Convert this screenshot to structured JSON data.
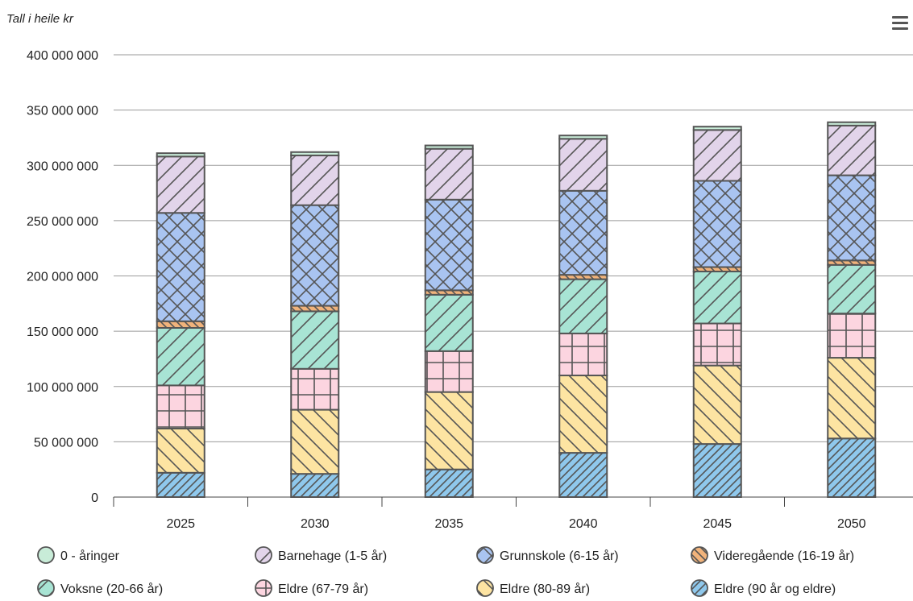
{
  "menu_icon": "hamburger-menu-icon",
  "chart_data": {
    "type": "bar",
    "stacked": true,
    "unit_label": "Tall i heile kr",
    "categories": [
      "2025",
      "2030",
      "2035",
      "2040",
      "2045",
      "2050"
    ],
    "ylim": [
      0,
      400000000
    ],
    "yticks": [
      0,
      50000000,
      100000000,
      150000000,
      200000000,
      250000000,
      300000000,
      350000000,
      400000000
    ],
    "ytick_labels": [
      "0",
      "50 000 000",
      "100 000 000",
      "150 000 000",
      "200 000 000",
      "250 000 000",
      "300 000 000",
      "350 000 000",
      "400 000 000"
    ],
    "grid": true,
    "legend_position": "bottom",
    "series": [
      {
        "name": "Eldre (90 år og eldre)",
        "color": "#8fc8ec",
        "pattern": "dense-diagonal",
        "values": [
          22000000,
          21000000,
          25000000,
          40000000,
          48000000,
          53000000
        ]
      },
      {
        "name": "Eldre (80-89 år)",
        "color": "#fde4a2",
        "pattern": "back-diagonal",
        "values": [
          40000000,
          58000000,
          70000000,
          70000000,
          71000000,
          73000000
        ]
      },
      {
        "name": "Eldre (67-79 år)",
        "color": "#fcd5e0",
        "pattern": "grid",
        "values": [
          39000000,
          37000000,
          37000000,
          38000000,
          38000000,
          40000000
        ]
      },
      {
        "name": "Voksne (20-66 år)",
        "color": "#a8e4d4",
        "pattern": "diagonal",
        "values": [
          52000000,
          52000000,
          51000000,
          49000000,
          47000000,
          44000000
        ]
      },
      {
        "name": "Videregående (16-19 år)",
        "color": "#f1b37b",
        "pattern": "dense-back-diagonal",
        "values": [
          6000000,
          5000000,
          4000000,
          4000000,
          4000000,
          4000000
        ]
      },
      {
        "name": "Grunnskole (6-15 år)",
        "color": "#a9c4f1",
        "pattern": "crosshatch",
        "values": [
          98000000,
          91000000,
          82000000,
          76000000,
          78000000,
          77000000
        ]
      },
      {
        "name": "Barnehage (1-5 år)",
        "color": "#e2d4ea",
        "pattern": "diagonal",
        "values": [
          51000000,
          45000000,
          46000000,
          47000000,
          46000000,
          45000000
        ]
      },
      {
        "name": "0 - åringer",
        "color": "#c8ecd8",
        "pattern": "none",
        "values": [
          3000000,
          3000000,
          3000000,
          3000000,
          3000000,
          3000000
        ]
      }
    ],
    "legend_order": [
      "0 - åringer",
      "Barnehage (1-5 år)",
      "Grunnskole (6-15 år)",
      "Videregående (16-19 år)",
      "Voksne (20-66 år)",
      "Eldre (67-79 år)",
      "Eldre (80-89 år)",
      "Eldre (90 år og eldre)"
    ]
  }
}
